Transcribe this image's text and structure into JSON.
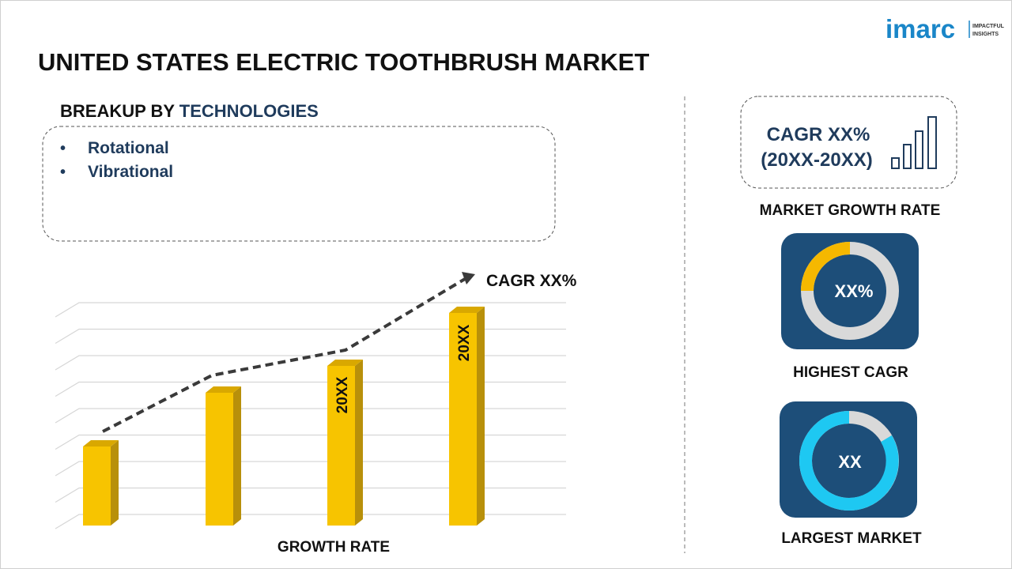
{
  "logo": {
    "name": "imarc",
    "tagline_1": "IMPACTFUL",
    "tagline_2": "INSIGHTS"
  },
  "header": {
    "title": "UNITED STATES ELECTRIC TOOTHBRUSH MARKET"
  },
  "breakup": {
    "label": "BREAKUP BY",
    "dimension": "TECHNOLOGIES",
    "items": [
      "Rotational",
      "Vibrational"
    ]
  },
  "growth_chart": {
    "cagr_label": "CAGR XX%",
    "bar_labels": [
      "20XX",
      "20XX"
    ],
    "axis_label": "GROWTH RATE"
  },
  "market_growth": {
    "cagr": "CAGR XX%",
    "period": "(20XX-20XX)",
    "caption": "MARKET GROWTH RATE"
  },
  "highest_cagr": {
    "value": "XX%",
    "caption": "HIGHEST CAGR"
  },
  "largest_market": {
    "value": "XX",
    "caption": "LARGEST MARKET"
  }
}
